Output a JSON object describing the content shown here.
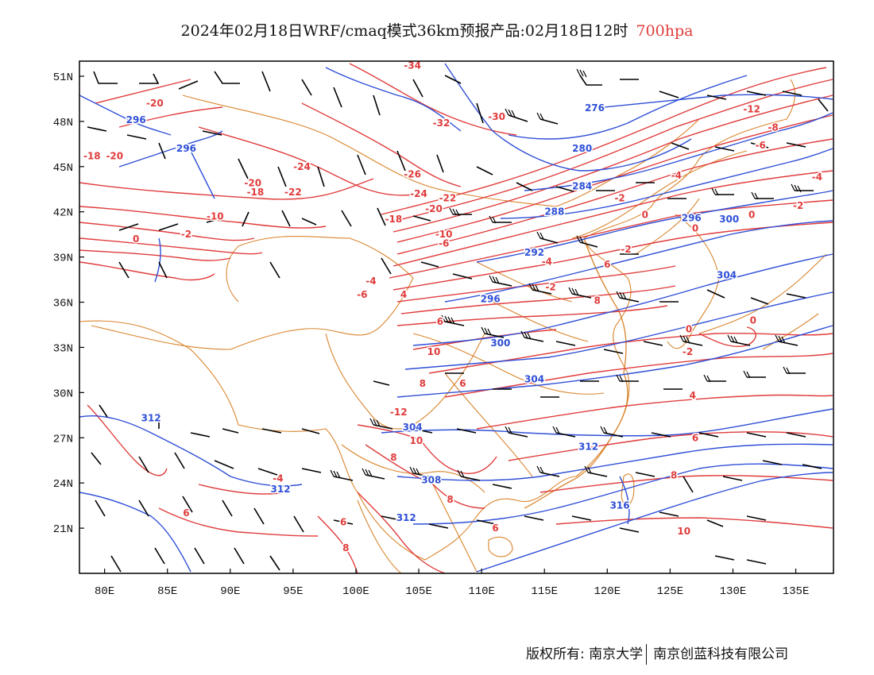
{
  "title": {
    "text": "2024年02月18日WRF/cmaq模式36km预报产品:02月18日12时",
    "level": "700hpa"
  },
  "colors": {
    "temperature": "#e03c3c",
    "geopotential": "#2f4fd6",
    "boundary": "#d9842c",
    "wind": "#000000",
    "level_text": "#e03c3c"
  },
  "footer": {
    "copyright": "版权所有: 南京大学",
    "company": "南京创蓝科技有限公司"
  },
  "axes": {
    "lon_ticks": [
      "80E",
      "85E",
      "90E",
      "95E",
      "100E",
      "105E",
      "110E",
      "115E",
      "120E",
      "125E",
      "130E",
      "135E"
    ],
    "lon_values": [
      80,
      85,
      90,
      95,
      100,
      105,
      110,
      115,
      120,
      125,
      130,
      135
    ],
    "lat_ticks": [
      "51N",
      "48N",
      "45N",
      "42N",
      "39N",
      "36N",
      "33N",
      "30N",
      "27N",
      "24N",
      "21N"
    ],
    "lat_values": [
      51,
      48,
      45,
      42,
      39,
      36,
      33,
      30,
      27,
      24,
      21
    ],
    "lon_range": [
      78,
      138
    ],
    "lat_range": [
      18,
      52
    ]
  },
  "labels": {
    "temperature": [
      {
        "text": "-20",
        "lon": 80.8,
        "lat": 45.7
      },
      {
        "text": "-20",
        "lon": 84.0,
        "lat": 49.2
      },
      {
        "text": "-22",
        "lon": 95.0,
        "lat": 43.3
      },
      {
        "text": "-24",
        "lon": 95.7,
        "lat": 45.0
      },
      {
        "text": "-18",
        "lon": 92.0,
        "lat": 43.3
      },
      {
        "text": "-20",
        "lon": 91.8,
        "lat": 43.9
      },
      {
        "text": "-10",
        "lon": 88.8,
        "lat": 41.7
      },
      {
        "text": "-2",
        "lon": 86.5,
        "lat": 40.5
      },
      {
        "text": "0",
        "lon": 82.5,
        "lat": 40.2
      },
      {
        "text": "-34",
        "lon": 104.5,
        "lat": 51.7
      },
      {
        "text": "-32",
        "lon": 106.8,
        "lat": 47.9
      },
      {
        "text": "-30",
        "lon": 111.2,
        "lat": 48.3
      },
      {
        "text": "-26",
        "lon": 104.5,
        "lat": 44.5
      },
      {
        "text": "-24",
        "lon": 105.0,
        "lat": 43.2
      },
      {
        "text": "-22",
        "lon": 107.3,
        "lat": 42.9
      },
      {
        "text": "-20",
        "lon": 106.2,
        "lat": 42.2
      },
      {
        "text": "-18",
        "lon": 103.0,
        "lat": 41.5
      },
      {
        "text": "-10",
        "lon": 107.0,
        "lat": 40.5
      },
      {
        "text": "-6",
        "lon": 107.0,
        "lat": 39.9
      },
      {
        "text": "-4",
        "lon": 101.2,
        "lat": 37.4
      },
      {
        "text": "-6",
        "lon": 100.5,
        "lat": 36.5
      },
      {
        "text": "4",
        "lon": 103.8,
        "lat": 36.5
      },
      {
        "text": "6",
        "lon": 106.7,
        "lat": 34.7
      },
      {
        "text": "10",
        "lon": 106.2,
        "lat": 32.7
      },
      {
        "text": "-4",
        "lon": 115.2,
        "lat": 38.7
      },
      {
        "text": "-2",
        "lon": 115.5,
        "lat": 37.0
      },
      {
        "text": "-2",
        "lon": 121.0,
        "lat": 42.9
      },
      {
        "text": "0",
        "lon": 123.0,
        "lat": 41.8
      },
      {
        "text": "-2",
        "lon": 121.5,
        "lat": 39.5
      },
      {
        "text": "-4",
        "lon": 125.5,
        "lat": 44.4
      },
      {
        "text": "-12",
        "lon": 131.5,
        "lat": 48.8
      },
      {
        "text": "-8",
        "lon": 133.2,
        "lat": 47.6
      },
      {
        "text": "-6",
        "lon": 132.2,
        "lat": 46.4
      },
      {
        "text": "-4",
        "lon": 136.7,
        "lat": 44.3
      },
      {
        "text": "-2",
        "lon": 135.2,
        "lat": 42.4
      },
      {
        "text": "0",
        "lon": 131.5,
        "lat": 41.8
      },
      {
        "text": "0",
        "lon": 127.0,
        "lat": 40.9
      },
      {
        "text": "0",
        "lon": 131.6,
        "lat": 34.8
      },
      {
        "text": "0",
        "lon": 126.5,
        "lat": 34.2
      },
      {
        "text": "-2",
        "lon": 126.4,
        "lat": 32.7
      },
      {
        "text": "4",
        "lon": 126.8,
        "lat": 29.8
      },
      {
        "text": "6",
        "lon": 127.0,
        "lat": 27.0
      },
      {
        "text": "8",
        "lon": 125.3,
        "lat": 24.5
      },
      {
        "text": "10",
        "lon": 126.1,
        "lat": 20.8
      },
      {
        "text": "8",
        "lon": 119.2,
        "lat": 36.1
      },
      {
        "text": "-12",
        "lon": 103.4,
        "lat": 28.7
      },
      {
        "text": "10",
        "lon": 104.8,
        "lat": 26.8
      },
      {
        "text": "8",
        "lon": 103.0,
        "lat": 25.7
      },
      {
        "text": "8",
        "lon": 107.5,
        "lat": 22.9
      },
      {
        "text": "6",
        "lon": 99.0,
        "lat": 21.4
      },
      {
        "text": "8",
        "lon": 99.2,
        "lat": 19.7
      },
      {
        "text": "6",
        "lon": 86.5,
        "lat": 22.0
      },
      {
        "text": "-4",
        "lon": 93.8,
        "lat": 24.3
      },
      {
        "text": "-18",
        "lon": 79.0,
        "lat": 45.7
      },
      {
        "text": "8",
        "lon": 105.3,
        "lat": 30.6
      },
      {
        "text": "6",
        "lon": 108.5,
        "lat": 30.6
      },
      {
        "text": "6",
        "lon": 111.1,
        "lat": 21.0
      },
      {
        "text": "6",
        "lon": 120.0,
        "lat": 38.5
      }
    ],
    "geopotential": [
      {
        "text": "296",
        "lon": 82.5,
        "lat": 48.1
      },
      {
        "text": "296",
        "lon": 86.5,
        "lat": 46.2
      },
      {
        "text": "276",
        "lon": 119.0,
        "lat": 48.9
      },
      {
        "text": "280",
        "lon": 118.0,
        "lat": 46.2
      },
      {
        "text": "284",
        "lon": 118.0,
        "lat": 43.7
      },
      {
        "text": "288",
        "lon": 115.8,
        "lat": 42.0
      },
      {
        "text": "292",
        "lon": 114.2,
        "lat": 39.3
      },
      {
        "text": "296",
        "lon": 110.7,
        "lat": 36.2
      },
      {
        "text": "296",
        "lon": 126.7,
        "lat": 41.6
      },
      {
        "text": "300",
        "lon": 129.7,
        "lat": 41.5
      },
      {
        "text": "304",
        "lon": 129.5,
        "lat": 37.8
      },
      {
        "text": "300",
        "lon": 111.5,
        "lat": 33.3
      },
      {
        "text": "304",
        "lon": 114.2,
        "lat": 30.9
      },
      {
        "text": "304",
        "lon": 104.5,
        "lat": 27.7
      },
      {
        "text": "308",
        "lon": 106.0,
        "lat": 24.2
      },
      {
        "text": "312",
        "lon": 104.0,
        "lat": 21.7
      },
      {
        "text": "312",
        "lon": 118.5,
        "lat": 26.4
      },
      {
        "text": "316",
        "lon": 121.0,
        "lat": 22.5
      },
      {
        "text": "312",
        "lon": 83.7,
        "lat": 28.3
      },
      {
        "text": "312",
        "lon": 94.0,
        "lat": 23.6
      }
    ]
  }
}
